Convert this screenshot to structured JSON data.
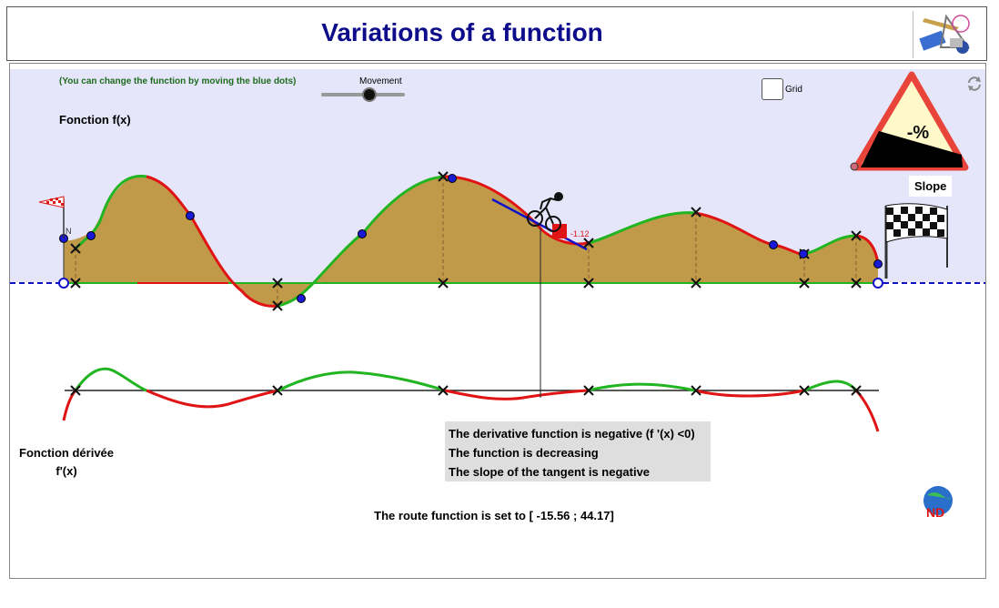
{
  "header": {
    "title": "Variations of a function"
  },
  "controls": {
    "hint": "(You can change the function by moving the blue dots)",
    "movement_label": "Movement",
    "grid_label": "Grid"
  },
  "labels": {
    "function": "Fonction f(x)",
    "derivative_line1": "Fonction dérivée",
    "derivative_line2": "f'(x)",
    "slope": "Slope",
    "slope_sign": "-%",
    "start_marker": "N",
    "tangent_value": "-1.12"
  },
  "info": {
    "line1": "The derivative function is negative (f '(x) <0)",
    "line2": "The function is decreasing",
    "line3": "The slope of the tangent is negative"
  },
  "route": {
    "text": "The route function is set to [ -15.56 ; 44.17]"
  },
  "colors": {
    "title": "#0d0d8c",
    "background": "#e6e6fa",
    "fill": "#c19a49",
    "increasing": "#22b522",
    "decreasing": "#e01414",
    "axis": "#1010c8",
    "hint": "#1c6b1c"
  }
}
